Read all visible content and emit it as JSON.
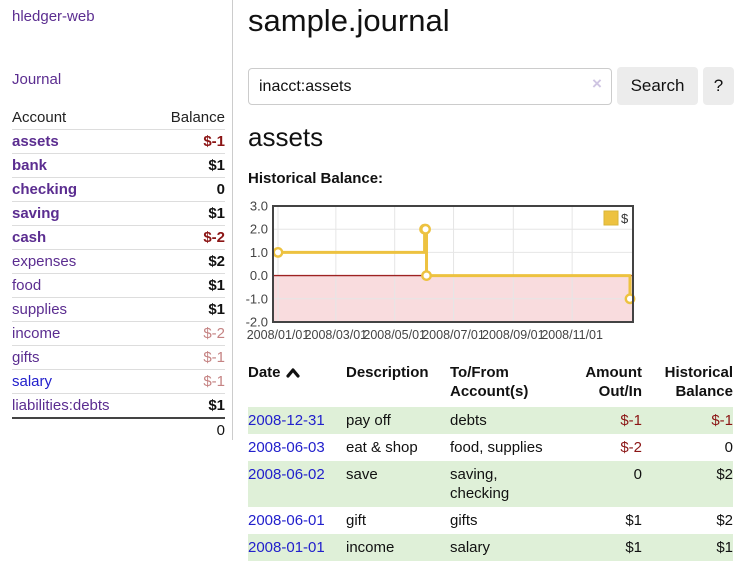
{
  "brand": "hledger-web",
  "sidebar": {
    "journal_link": "Journal",
    "accounts_table": {
      "headers": {
        "account": "Account",
        "balance": "Balance"
      },
      "rows": [
        {
          "name": "assets",
          "balance": "$-1"
        },
        {
          "name": "bank",
          "balance": "$1"
        },
        {
          "name": "checking",
          "balance": "0"
        },
        {
          "name": "saving",
          "balance": "$1"
        },
        {
          "name": "cash",
          "balance": "$-2"
        },
        {
          "name": "expenses",
          "balance": "$2"
        },
        {
          "name": "food",
          "balance": "$1"
        },
        {
          "name": "supplies",
          "balance": "$1"
        },
        {
          "name": "income",
          "balance": "$-2"
        },
        {
          "name": "gifts",
          "balance": "$-1"
        },
        {
          "name": "salary",
          "balance": "$-1"
        },
        {
          "name": "liabilities:debts",
          "balance": "$1"
        }
      ],
      "total": "0"
    }
  },
  "header": {
    "title": "sample.journal"
  },
  "search": {
    "value": "inacct:assets",
    "clear_icon": "×",
    "button_label": "Search",
    "help_label": "?"
  },
  "account_page": {
    "title": "assets",
    "section_label": "Historical Balance:"
  },
  "chart_data": {
    "type": "line",
    "step": true,
    "title": "Historical Balance",
    "series": [
      {
        "name": "$",
        "color": "#edc240",
        "points": [
          [
            "2008-01-01",
            1
          ],
          [
            "2008-06-01",
            2
          ],
          [
            "2008-06-02",
            2
          ],
          [
            "2008-06-03",
            0
          ],
          [
            "2008-12-31",
            -1
          ]
        ]
      }
    ],
    "xlim": [
      "2008-01-01",
      "2008-12-31"
    ],
    "ylim": [
      -2,
      3
    ],
    "x_ticks": [
      "2008/01/01",
      "2008/03/01",
      "2008/05/01",
      "2008/07/01",
      "2008/09/01",
      "2008/11/01"
    ],
    "y_ticks": [
      "3.0",
      "2.0",
      "1.0",
      "0.0",
      "-1.0",
      "-2.0"
    ],
    "grid": true,
    "legend": {
      "label": "$",
      "position": "top-right"
    },
    "colors": {
      "border": "#434343",
      "gridline": "#e6e6e6",
      "tick_text": "#444444",
      "negative_region_fill": "#f9dcde",
      "zero_line": "#9e2222",
      "marker_fill": "#ffffff"
    }
  },
  "register_table": {
    "headers": {
      "date": "Date",
      "description": "Description",
      "accounts": "To/From Account(s)",
      "amount": "Amount Out/In",
      "balance": "Historical Balance"
    },
    "rows": [
      {
        "date": "2008-12-31",
        "description": "pay off",
        "accounts": "debts",
        "amount": "$-1",
        "balance": "$-1"
      },
      {
        "date": "2008-06-03",
        "description": "eat & shop",
        "accounts": "food, supplies",
        "amount": "$-2",
        "balance": "0"
      },
      {
        "date": "2008-06-02",
        "description": "save",
        "accounts": "saving, checking",
        "amount": "0",
        "balance": "$2"
      },
      {
        "date": "2008-06-01",
        "description": "gift",
        "accounts": "gifts",
        "amount": "$1",
        "balance": "$2"
      },
      {
        "date": "2008-01-01",
        "description": "income",
        "accounts": "salary",
        "amount": "$1",
        "balance": "$1"
      }
    ]
  }
}
